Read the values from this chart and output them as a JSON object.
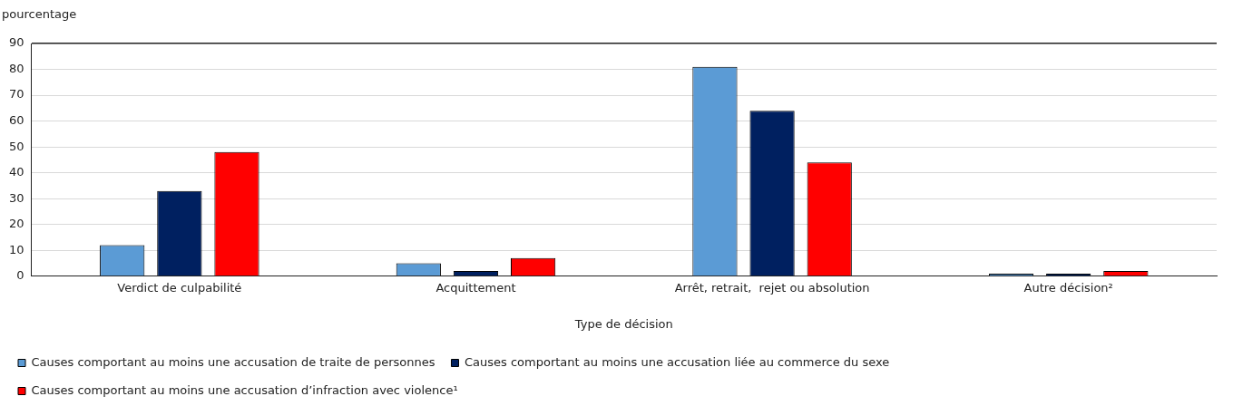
{
  "chart_data": {
    "type": "bar",
    "ylabel": "pourcentage",
    "xlabel": "Type de décision",
    "categories": [
      "Verdict de culpabilité",
      "Acquittement",
      "Arrêt, retrait,  rejet ou absolution",
      "Autre décision²"
    ],
    "series": [
      {
        "name": "Causes comportant au moins une accusation de traite de personnes",
        "color": "#5b9bd5",
        "values": [
          12,
          5,
          81,
          1
        ]
      },
      {
        "name": "Causes comportant au moins une accusation liée au commerce du sexe",
        "color": "#002060",
        "values": [
          33,
          2,
          64,
          1
        ]
      },
      {
        "name": "Causes comportant au moins une accusation d’infraction avec violence¹",
        "color": "#ff0000",
        "values": [
          48,
          7,
          44,
          2
        ]
      }
    ],
    "ylim": [
      0,
      90
    ],
    "yticks": [
      0,
      10,
      20,
      30,
      40,
      50,
      60,
      70,
      80,
      90
    ],
    "grid": "y",
    "legend": "bottom"
  }
}
